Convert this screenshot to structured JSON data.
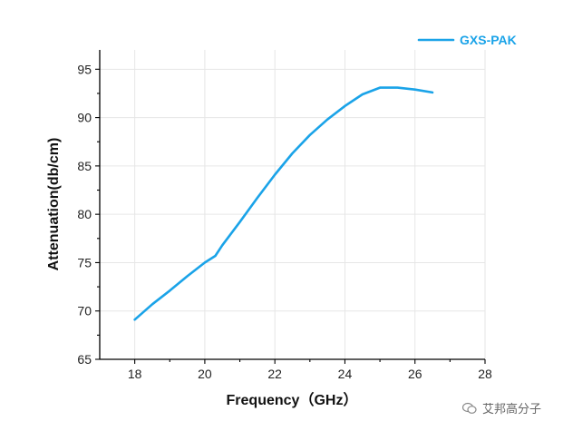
{
  "chart_data": {
    "type": "line",
    "title": "",
    "xlabel": "Frequency（GHz）",
    "ylabel": "Attenuation(db/cm)",
    "xlim": [
      17,
      28
    ],
    "ylim": [
      65,
      97
    ],
    "xticks": [
      18,
      20,
      22,
      24,
      26,
      28
    ],
    "yticks": [
      65,
      70,
      75,
      80,
      85,
      90,
      95
    ],
    "grid": true,
    "legend_position": "top-right",
    "series": [
      {
        "name": "GXS-PAK",
        "color": "#1aa3e8",
        "x": [
          18.0,
          18.5,
          19.0,
          19.5,
          20.0,
          20.3,
          20.5,
          21.0,
          21.5,
          22.0,
          22.5,
          23.0,
          23.5,
          24.0,
          24.5,
          25.0,
          25.5,
          26.0,
          26.5
        ],
        "y": [
          69.1,
          70.7,
          72.1,
          73.6,
          75.0,
          75.7,
          76.8,
          79.2,
          81.7,
          84.1,
          86.3,
          88.2,
          89.8,
          91.2,
          92.4,
          93.1,
          93.1,
          92.9,
          92.6
        ]
      }
    ]
  },
  "watermark": {
    "text": "艾邦高分子",
    "icon": "wechat-icon"
  }
}
